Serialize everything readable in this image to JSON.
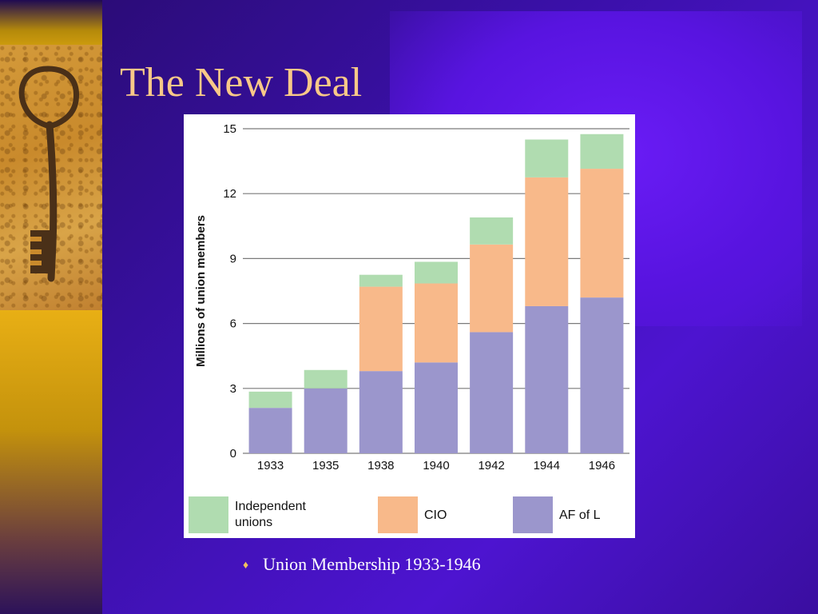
{
  "slide": {
    "title": "The New Deal",
    "caption": "Union Membership 1933-1946",
    "bullet": "♦"
  },
  "chart_data": {
    "type": "bar",
    "stacked": true,
    "categories": [
      "1933",
      "1935",
      "1938",
      "1940",
      "1942",
      "1944",
      "1946"
    ],
    "series": [
      {
        "name": "AF of L",
        "color": "#9b96cc",
        "values": [
          2.1,
          3.0,
          3.8,
          4.2,
          5.6,
          6.8,
          7.2
        ]
      },
      {
        "name": "CIO",
        "color": "#f8b98a",
        "values": [
          0,
          0,
          3.9,
          3.65,
          4.05,
          5.95,
          5.95
        ]
      },
      {
        "name": "Independent unions",
        "color": "#b0dcb0",
        "values": [
          0.75,
          0.85,
          0.55,
          1.0,
          1.25,
          1.75,
          1.6
        ]
      }
    ],
    "legend": [
      {
        "label": "Independent\nunions",
        "series": "Independent unions",
        "color": "#b0dcb0"
      },
      {
        "label": "CIO",
        "series": "CIO",
        "color": "#f8b98a"
      },
      {
        "label": "AF of L",
        "series": "AF of L",
        "color": "#9b96cc"
      }
    ],
    "ylabel": "Millions of union members",
    "xlabel": "",
    "yticks": [
      0,
      3,
      6,
      9,
      12,
      15
    ],
    "ylim": [
      0,
      15
    ],
    "grid": true,
    "legend_position": "bottom"
  }
}
